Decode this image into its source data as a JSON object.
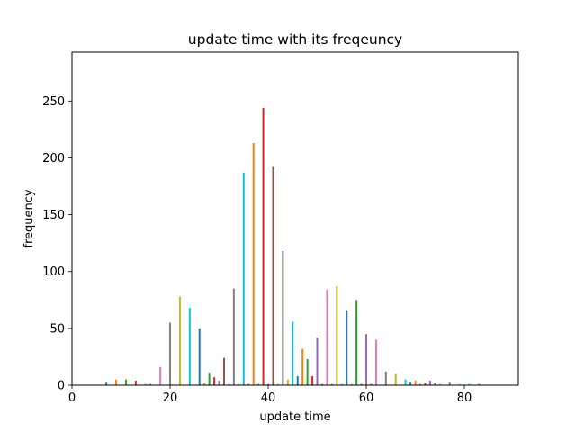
{
  "chart_data": {
    "type": "bar",
    "title": "update time with its freqeuncy",
    "xlabel": "update time",
    "ylabel": "frequency",
    "xlim": [
      0,
      91
    ],
    "ylim": [
      0,
      293
    ],
    "xticks": [
      0,
      20,
      40,
      60,
      80
    ],
    "yticks": [
      0,
      50,
      100,
      150,
      200,
      250
    ],
    "grid": false,
    "palette": [
      "#1f77b4",
      "#ff7f0e",
      "#2ca02c",
      "#d62728",
      "#9467bd",
      "#8c564b",
      "#e377c2",
      "#7f7f7f",
      "#bcbd22",
      "#17becf"
    ],
    "x": [
      7,
      9,
      11,
      13,
      15,
      16,
      18,
      20,
      22,
      24,
      26,
      27,
      28,
      29,
      30,
      31,
      32,
      33,
      34,
      35,
      36,
      37,
      38,
      39,
      40,
      41,
      42,
      43,
      44,
      45,
      46,
      47,
      48,
      49,
      50,
      51,
      52,
      53,
      54,
      55,
      56,
      57,
      58,
      59,
      60,
      61,
      62,
      64,
      66,
      68,
      69,
      70,
      71,
      72,
      73,
      74,
      75,
      77,
      79,
      81,
      83
    ],
    "values": [
      3,
      5,
      5,
      4,
      1,
      1,
      16,
      55,
      78,
      68,
      50,
      2,
      11,
      7,
      4,
      24,
      1,
      85,
      1,
      187,
      1,
      213,
      1,
      244,
      1,
      192,
      1,
      118,
      5,
      56,
      8,
      32,
      23,
      8,
      42,
      1,
      84,
      1,
      87,
      1,
      66,
      1,
      75,
      1,
      45,
      1,
      40,
      12,
      10,
      5,
      3,
      4,
      1,
      2,
      4,
      2,
      1,
      3,
      1,
      1,
      1
    ]
  }
}
